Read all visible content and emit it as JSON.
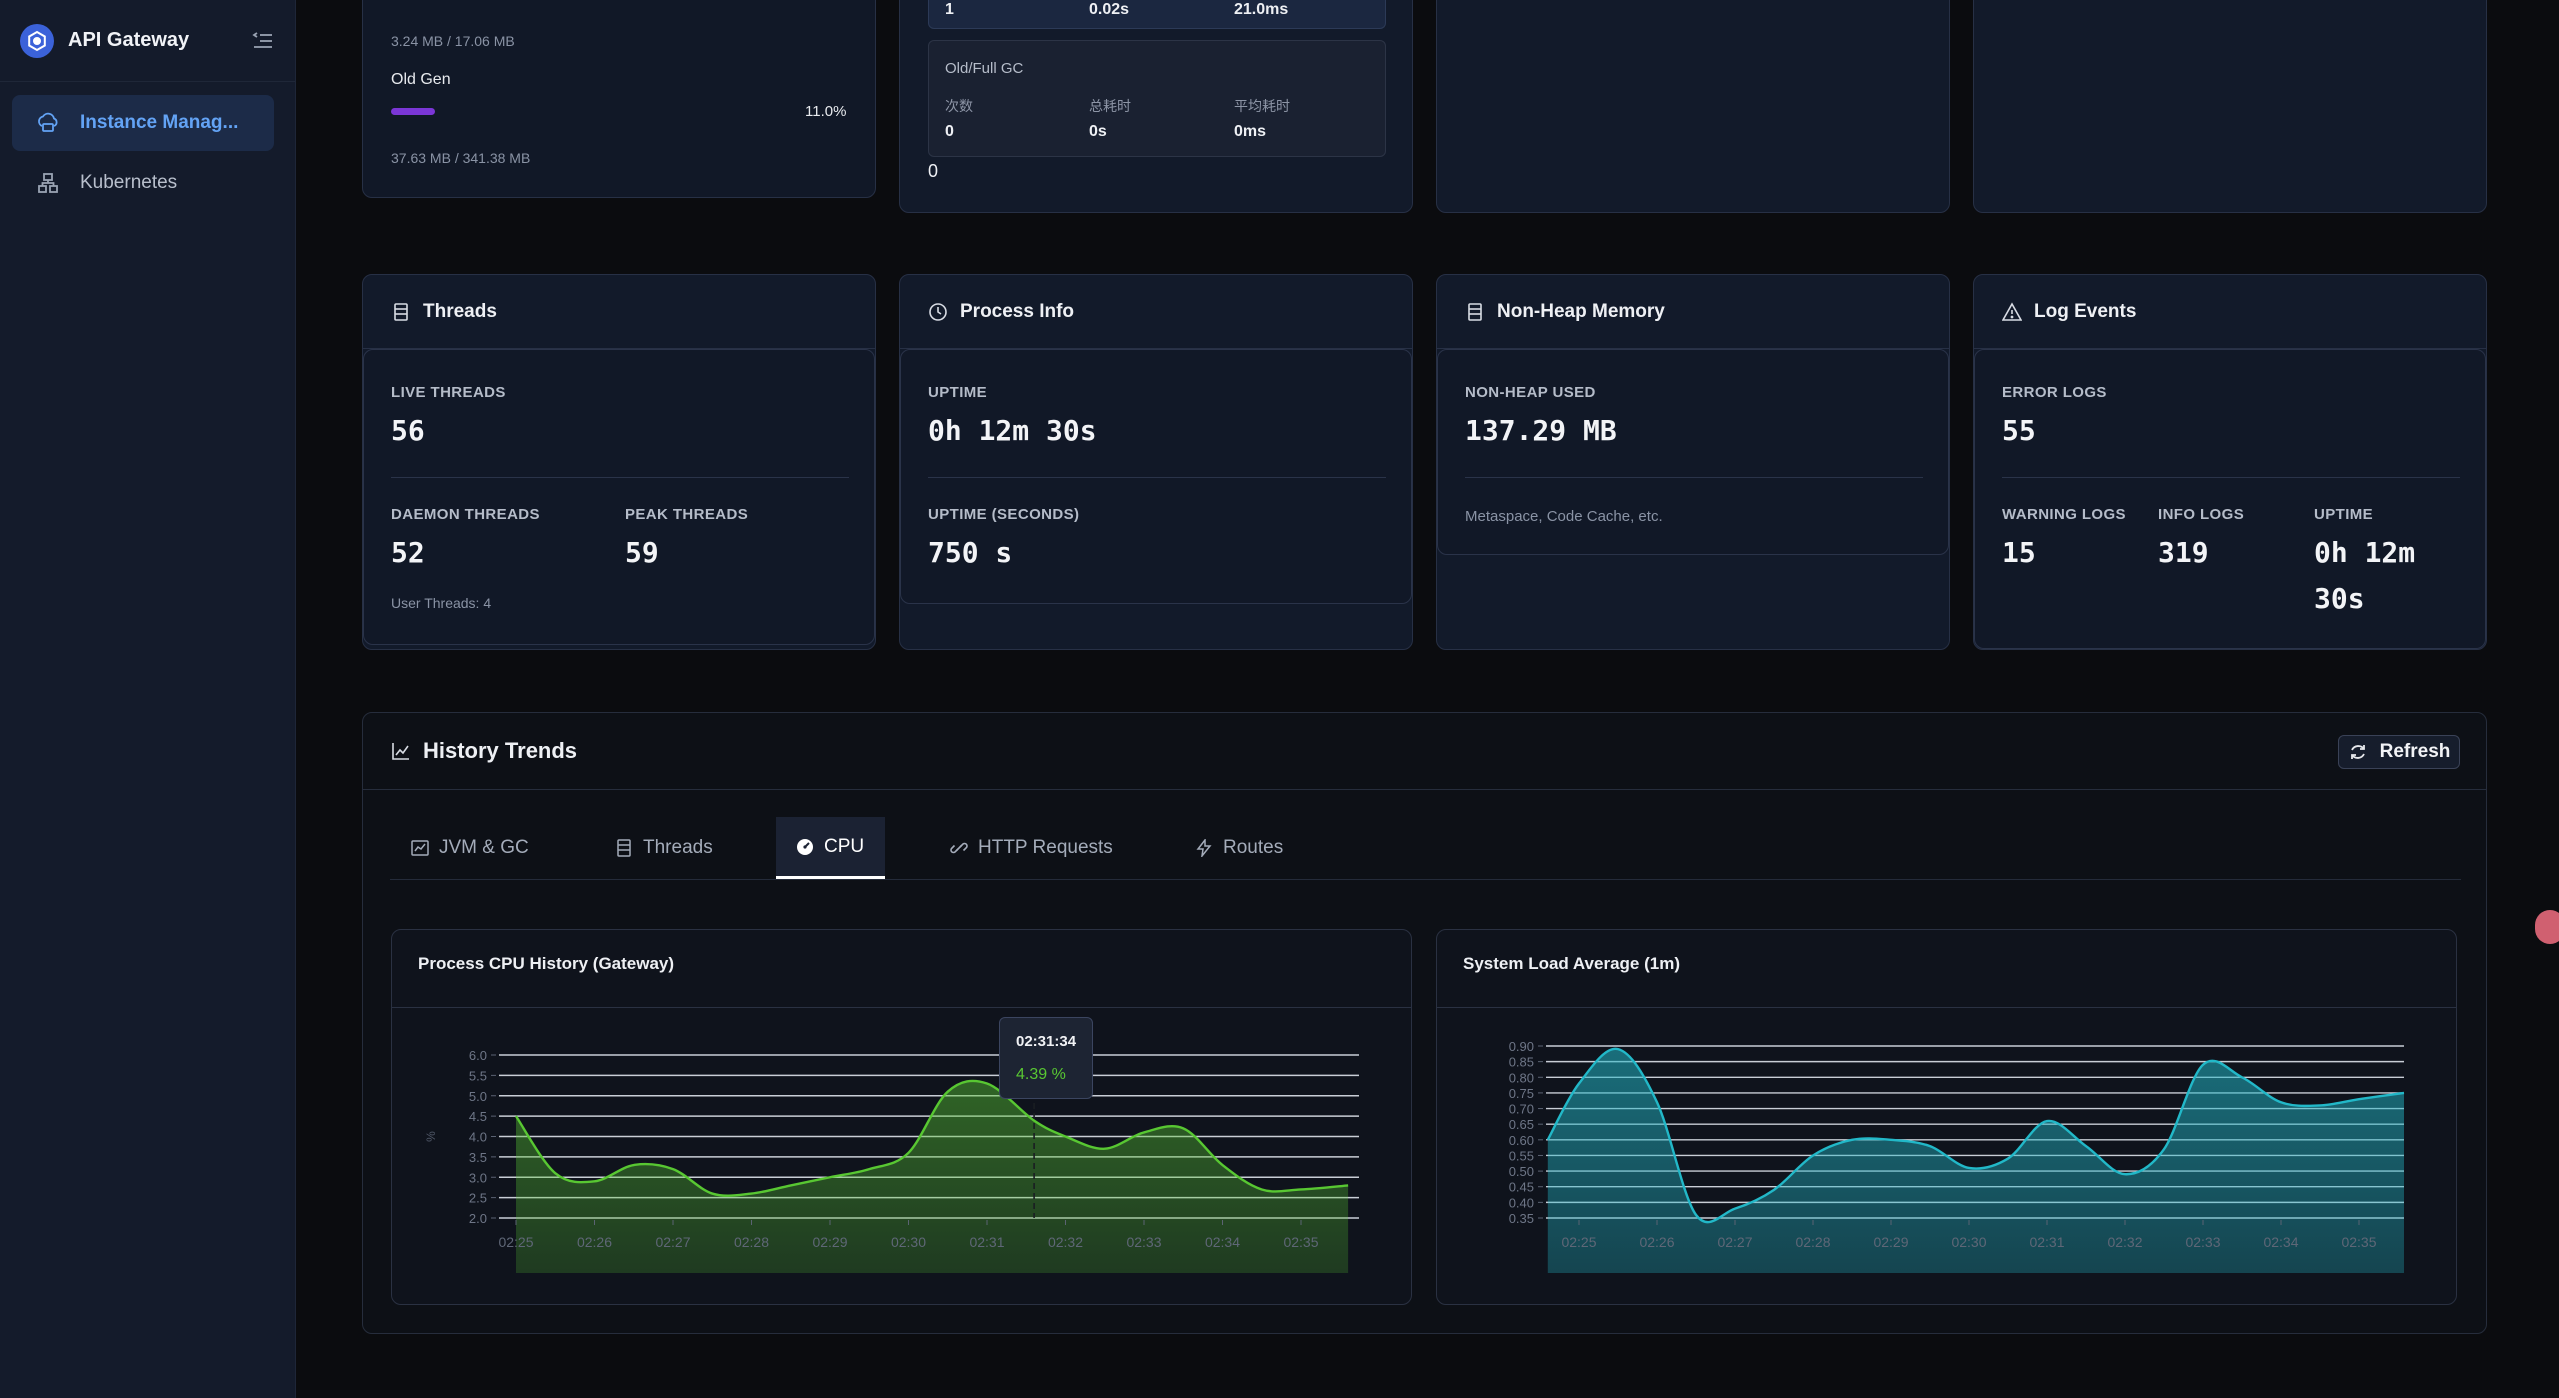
{
  "app": {
    "title": "API Gateway"
  },
  "sidebar": {
    "items": [
      {
        "label": "Instance Manag...",
        "icon": "cloud-server-icon",
        "active": true
      },
      {
        "label": "Kubernetes",
        "icon": "cluster-icon",
        "active": false
      }
    ]
  },
  "memory_card": {
    "young_size": "3.24 MB / 17.06 MB",
    "old_gen_label": "Old Gen",
    "old_gen_percent_text": "11.0%",
    "old_gen_percent": 11.0,
    "old_gen_size": "37.63 MB / 341.38 MB"
  },
  "gc_card": {
    "young_row": {
      "count": "1",
      "total": "0.02s",
      "avg": "21.0ms"
    },
    "old_title": "Old/Full GC",
    "col_count": "次数",
    "col_total": "总耗时",
    "col_avg": "平均耗时",
    "old_row": {
      "count": "0",
      "total": "0s",
      "avg": "0ms"
    },
    "footer_value": "0"
  },
  "threads": {
    "title": "Threads",
    "live_label": "LIVE THREADS",
    "live_value": "56",
    "daemon_label": "DAEMON THREADS",
    "daemon_value": "52",
    "peak_label": "PEAK THREADS",
    "peak_value": "59",
    "user_threads": "User Threads: 4"
  },
  "process": {
    "title": "Process Info",
    "uptime_label": "UPTIME",
    "uptime_value": "0h 12m 30s",
    "uptime_sec_label": "UPTIME (SECONDS)",
    "uptime_sec_value": "750 s"
  },
  "nonheap": {
    "title": "Non-Heap Memory",
    "used_label": "NON-HEAP USED",
    "used_value": "137.29 MB",
    "note": "Metaspace, Code Cache, etc."
  },
  "logs": {
    "title": "Log Events",
    "error_label": "ERROR LOGS",
    "error_value": "55",
    "warning_label": "WARNING LOGS",
    "warning_value": "15",
    "info_label": "INFO LOGS",
    "info_value": "319",
    "uptime_label": "UPTIME",
    "uptime_line1": "0h 12m",
    "uptime_line2": "30s"
  },
  "history": {
    "title": "History Trends",
    "refresh_label": "Refresh",
    "tabs": [
      {
        "label": "JVM & GC",
        "icon": "line-chart-icon"
      },
      {
        "label": "Threads",
        "icon": "list-icon"
      },
      {
        "label": "CPU",
        "icon": "dashboard-icon",
        "active": true
      },
      {
        "label": "HTTP Requests",
        "icon": "link-icon"
      },
      {
        "label": "Routes",
        "icon": "bolt-icon"
      }
    ]
  },
  "tooltip": {
    "time": "02:31:34",
    "value": "4.39 %"
  },
  "colors": {
    "cpu": "#58c732",
    "load": "#22b8c8",
    "accent": "#63a3f5"
  },
  "chart_data": [
    {
      "type": "area",
      "title": "Process CPU History (Gateway)",
      "ylabel": "%",
      "ylim": [
        2.0,
        6.0
      ],
      "yticks": [
        "6.0",
        "5.5",
        "5.0",
        "4.5",
        "4.0",
        "3.5",
        "3.0",
        "2.5",
        "2.0"
      ],
      "xticks": [
        "02:25",
        "02:26",
        "02:27",
        "02:28",
        "02:29",
        "02:30",
        "02:31",
        "02:32",
        "02:33",
        "02:34",
        "02:35"
      ],
      "x": [
        0,
        0.5,
        1,
        1.5,
        2,
        2.5,
        3,
        3.5,
        4,
        4.5,
        5,
        5.5,
        6,
        6.6,
        7,
        7.5,
        8,
        8.5,
        9,
        9.5,
        10,
        10.6
      ],
      "series": [
        {
          "values": [
            4.5,
            3.1,
            2.9,
            3.3,
            3.2,
            2.6,
            2.6,
            2.8,
            3.0,
            3.2,
            3.6,
            5.1,
            5.3,
            4.39,
            4.0,
            3.7,
            4.1,
            4.2,
            3.3,
            2.7,
            2.7,
            2.8
          ]
        }
      ]
    },
    {
      "type": "area",
      "title": "System Load Average (1m)",
      "ylim": [
        0.35,
        0.9
      ],
      "yticks": [
        "0.90",
        "0.85",
        "0.80",
        "0.75",
        "0.70",
        "0.65",
        "0.60",
        "0.55",
        "0.50",
        "0.45",
        "0.40",
        "0.35"
      ],
      "xticks": [
        "02:25",
        "02:26",
        "02:27",
        "02:28",
        "02:29",
        "02:30",
        "02:31",
        "02:32",
        "02:33",
        "02:34",
        "02:35"
      ],
      "x": [
        -0.4,
        0,
        0.5,
        1,
        1.5,
        2,
        2.5,
        3,
        3.5,
        4,
        4.5,
        5,
        5.5,
        6,
        6.5,
        7,
        7.5,
        8,
        8.5,
        9,
        9.5,
        10,
        10.6
      ],
      "series": [
        {
          "values": [
            0.6,
            0.78,
            0.89,
            0.72,
            0.36,
            0.38,
            0.44,
            0.55,
            0.6,
            0.6,
            0.58,
            0.51,
            0.54,
            0.66,
            0.58,
            0.49,
            0.57,
            0.84,
            0.8,
            0.72,
            0.71,
            0.73,
            0.75
          ]
        }
      ]
    }
  ]
}
